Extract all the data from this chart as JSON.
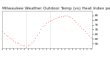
{
  "title": "Milwaukee Weather Outdoor Temp (vs) Heat Index per Minute (Last 24 Hours)",
  "background_color": "#ffffff",
  "plot_bg_color": "#ffffff",
  "line_color": "#ff0000",
  "vline_color": "#aaaaaa",
  "y_values": [
    68,
    66,
    64,
    63,
    61,
    60,
    58,
    57,
    56,
    55,
    54,
    53,
    53,
    52,
    53,
    54,
    56,
    58,
    61,
    64,
    67,
    70,
    73,
    75,
    77,
    78,
    79,
    80,
    81,
    82,
    83,
    83,
    84,
    84,
    85,
    85,
    84,
    83,
    82,
    80,
    78,
    76,
    74,
    72,
    70,
    68,
    66,
    64,
    62,
    60
  ],
  "ylim": [
    50,
    90
  ],
  "yticks": [
    55,
    60,
    65,
    70,
    75,
    80,
    85
  ],
  "ytick_labels": [
    "55",
    "60",
    "65",
    "70",
    "75",
    "80",
    "85"
  ],
  "title_fontsize": 4.2,
  "tick_fontsize": 3.2,
  "marker_size": 1.0,
  "vline_positions": [
    13,
    26
  ],
  "vline_color_style": ":"
}
